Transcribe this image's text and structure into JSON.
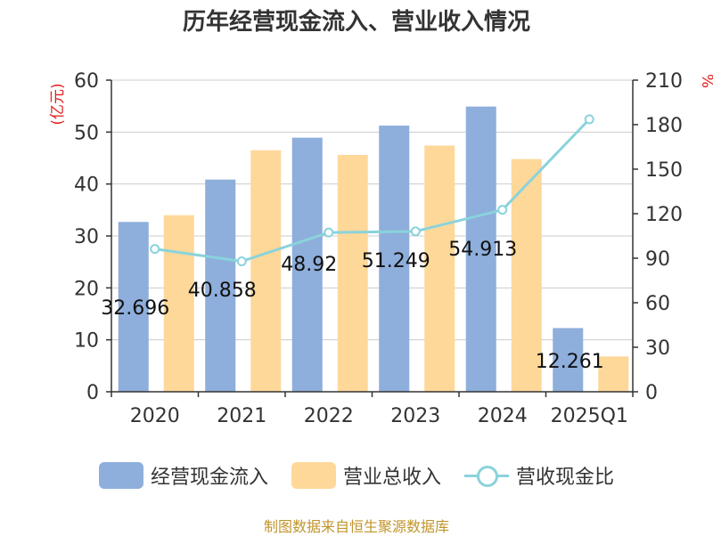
{
  "chart_data": {
    "type": "bar",
    "title": "历年经营现金流入、营业收入情况",
    "categories": [
      "2020",
      "2021",
      "2022",
      "2023",
      "2024",
      "2025Q1"
    ],
    "series": [
      {
        "name": "经营现金流入",
        "axis": "left",
        "type": "bar",
        "values": [
          32.696,
          40.858,
          48.92,
          51.249,
          54.913,
          12.261
        ],
        "labels": [
          "32.696",
          "40.858",
          "48.92",
          "51.249",
          "54.913",
          "12.261"
        ]
      },
      {
        "name": "营业总收入",
        "axis": "left",
        "type": "bar",
        "values": [
          34.0,
          46.5,
          45.6,
          47.4,
          44.8,
          6.8
        ]
      },
      {
        "name": "营收现金比",
        "axis": "right",
        "type": "line",
        "values": [
          96.2,
          87.9,
          107.3,
          108.1,
          122.6,
          183.6
        ]
      }
    ],
    "ylabel_left": "(亿元)",
    "ylabel_right": "%",
    "ylim_left": [
      0,
      60
    ],
    "ylim_right": [
      0,
      210
    ],
    "yticks_left": [
      0,
      10,
      20,
      30,
      40,
      50,
      60
    ],
    "yticks_right": [
      0,
      30,
      60,
      90,
      120,
      150,
      180,
      210
    ],
    "grid": true,
    "legend_position": "bottom"
  },
  "colors": {
    "bar1": "#8eaedb",
    "bar2": "#fed899",
    "line": "#8ad3dc",
    "axis_label": "#e02020",
    "source": "#c0952d"
  },
  "source": "制图数据来自恒生聚源数据库"
}
